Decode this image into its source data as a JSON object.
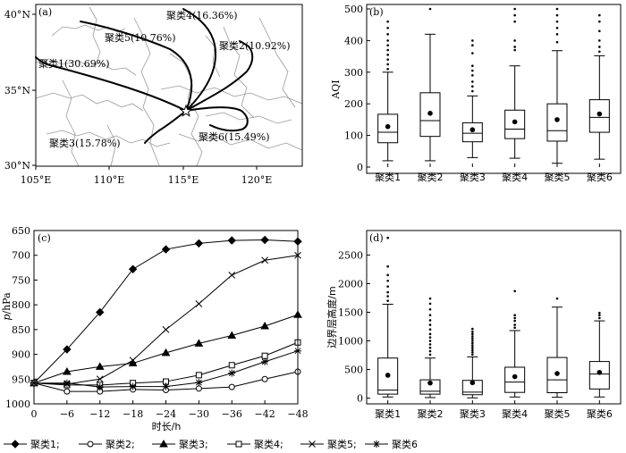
{
  "chart_data": [
    {
      "panel_label": "(a)",
      "type": "map",
      "x_ticks": [
        "105°E",
        "110°E",
        "115°E",
        "120°E"
      ],
      "y_ticks": [
        "40°N",
        "35°N",
        "30°N"
      ],
      "clusters": [
        {
          "label": "聚类1(30.69%)"
        },
        {
          "label": "聚类2(10.92%)"
        },
        {
          "label": "聚类3(15.78%)"
        },
        {
          "label": "聚类4(16.36%)"
        },
        {
          "label": "聚类5(10.76%)"
        },
        {
          "label": "聚类6(15.49%)"
        }
      ]
    },
    {
      "panel_label": "(b)",
      "type": "boxplot",
      "ylabel": "AQI",
      "ylim": [
        0,
        500
      ],
      "y_ticks": [
        0,
        100,
        200,
        300,
        400,
        500
      ],
      "categories": [
        "聚类1",
        "聚类2",
        "聚类3",
        "聚类4",
        "聚类5",
        "聚类6"
      ],
      "boxes": [
        {
          "whisker_low": 20,
          "q1": 77,
          "median": 110,
          "q3": 167,
          "whisker_high": 300,
          "mean": 128,
          "outliers": [
            310,
            325,
            340,
            355,
            370,
            385,
            400,
            420,
            440,
            460
          ]
        },
        {
          "whisker_low": 20,
          "q1": 97,
          "median": 147,
          "q3": 235,
          "whisker_high": 420,
          "mean": 170,
          "outliers": [
            500
          ]
        },
        {
          "whisker_low": 30,
          "q1": 80,
          "median": 107,
          "q3": 140,
          "whisker_high": 225,
          "mean": 118,
          "outliers": [
            240,
            255,
            270,
            290,
            305,
            320,
            360,
            385,
            400
          ]
        },
        {
          "whisker_low": 28,
          "q1": 90,
          "median": 120,
          "q3": 180,
          "whisker_high": 320,
          "mean": 143,
          "outliers": [
            370,
            380,
            400,
            460,
            480,
            500
          ]
        },
        {
          "whisker_low": 12,
          "q1": 82,
          "median": 115,
          "q3": 200,
          "whisker_high": 368,
          "mean": 150,
          "outliers": [
            395,
            420,
            440,
            460,
            480,
            500
          ]
        },
        {
          "whisker_low": 25,
          "q1": 110,
          "median": 157,
          "q3": 213,
          "whisker_high": 352,
          "mean": 168,
          "outliers": [
            365,
            380,
            400,
            430,
            460,
            480
          ]
        }
      ]
    },
    {
      "panel_label": "(c)",
      "type": "line",
      "xlabel": "时长/h",
      "ylabel_italic": "p",
      "ylabel_rest": "/hPa",
      "x": [
        0,
        -6,
        -12,
        -18,
        -24,
        -30,
        -36,
        -42,
        -48
      ],
      "x_tick_labels": [
        "0",
        "−6",
        "−12",
        "−18",
        "−24",
        "−30",
        "−36",
        "−42",
        "−48"
      ],
      "ylim": [
        1000,
        650
      ],
      "y_ticks": [
        650,
        700,
        750,
        800,
        850,
        900,
        950,
        1000
      ],
      "series": [
        {
          "name": "聚类1",
          "marker": "diamond",
          "values": [
            958,
            890,
            815,
            728,
            688,
            676,
            670,
            669,
            672
          ]
        },
        {
          "name": "聚类2",
          "marker": "circle",
          "values": [
            958,
            975,
            975,
            971,
            972,
            969,
            966,
            950,
            935
          ]
        },
        {
          "name": "聚类3",
          "marker": "triangle",
          "values": [
            958,
            935,
            925,
            918,
            897,
            878,
            862,
            843,
            820
          ]
        },
        {
          "name": "聚类4",
          "marker": "square",
          "values": [
            958,
            962,
            962,
            958,
            955,
            942,
            922,
            903,
            876
          ]
        },
        {
          "name": "聚类5",
          "marker": "x",
          "values": [
            958,
            960,
            950,
            912,
            850,
            798,
            740,
            710,
            700
          ]
        },
        {
          "name": "聚类6",
          "marker": "star",
          "values": [
            958,
            958,
            966,
            965,
            965,
            957,
            938,
            915,
            893
          ]
        }
      ],
      "legend_text": [
        "聚类1;",
        "聚类2;",
        "聚类3;",
        "聚类4;",
        "聚类5;",
        "聚类6"
      ]
    },
    {
      "panel_label": "(d)",
      "type": "boxplot",
      "ylabel": "边界层高度/m",
      "ylim": [
        -100,
        2850
      ],
      "y_ticks": [
        0,
        500,
        1000,
        1500,
        2000,
        2500
      ],
      "categories": [
        "聚类1",
        "聚类2",
        "聚类3",
        "聚类4",
        "聚类5",
        "聚类6"
      ],
      "boxes": [
        {
          "whisker_low": 20,
          "q1": 70,
          "median": 140,
          "q3": 700,
          "whisker_high": 1640,
          "mean": 400,
          "outliers": [
            1700,
            1780,
            1850,
            1950,
            2050,
            2150,
            2300,
            2800
          ]
        },
        {
          "whisker_low": 10,
          "q1": 70,
          "median": 120,
          "q3": 320,
          "whisker_high": 700,
          "mean": 265,
          "outliers": [
            760,
            820,
            880,
            940,
            1000,
            1060,
            1120,
            1200,
            1280,
            1360,
            1450,
            1550,
            1650,
            1740
          ]
        },
        {
          "whisker_low": 5,
          "q1": 60,
          "median": 105,
          "q3": 310,
          "whisker_high": 720,
          "mean": 270,
          "outliers": [
            760,
            800,
            840,
            880,
            920,
            960,
            1000,
            1040,
            1080,
            1120,
            1160,
            1210
          ]
        },
        {
          "whisker_low": 20,
          "q1": 100,
          "median": 280,
          "q3": 540,
          "whisker_high": 1180,
          "mean": 375,
          "outliers": [
            1230,
            1280,
            1350,
            1400,
            1450,
            1870
          ]
        },
        {
          "whisker_low": 15,
          "q1": 95,
          "median": 320,
          "q3": 710,
          "whisker_high": 1590,
          "mean": 430,
          "outliers": [
            1740
          ]
        },
        {
          "whisker_low": 20,
          "q1": 160,
          "median": 420,
          "q3": 640,
          "whisker_high": 1350,
          "mean": 450,
          "outliers": [
            1400,
            1450,
            1490
          ]
        }
      ]
    }
  ]
}
